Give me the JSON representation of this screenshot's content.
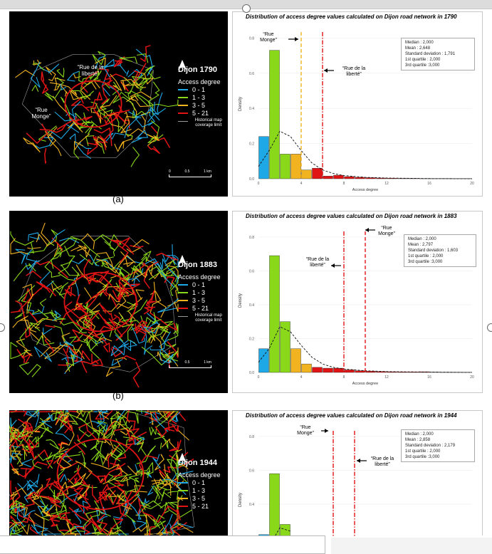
{
  "panels": [
    {
      "id": "a",
      "sublabel": "(a)",
      "city": "Dijon 1790",
      "map_annotations": [
        "“Rue de la liberté”",
        "“Rue Monge”"
      ],
      "scale": [
        "0",
        "0.5",
        "1 km"
      ]
    },
    {
      "id": "b",
      "sublabel": "(b)",
      "city": "Dijon 1883",
      "map_annotations": [],
      "scale": [
        "0",
        "0.5",
        "1 km"
      ]
    },
    {
      "id": "c",
      "sublabel": "",
      "city": "Dijon 1944",
      "map_annotations": [],
      "scale": []
    }
  ],
  "legend": {
    "title": "Access degree",
    "classes": [
      {
        "label": "0 - 1",
        "color": "#1fa8e6"
      },
      {
        "label": "1 - 3",
        "color": "#8ad81a"
      },
      {
        "label": "3 - 5",
        "color": "#f2b320"
      },
      {
        "label": "5 - 21",
        "color": "#e01414"
      }
    ],
    "coverage_label": "Historical map coverage limit",
    "coverage_color": "#9a9a9a"
  },
  "colors": {
    "bin_0_1": "#1fa8e6",
    "bin_1_3": "#8ad81a",
    "bin_3_5": "#f2b320",
    "bin_5_21": "#e01414",
    "map_bg": "#000000"
  },
  "chart_data": [
    {
      "type": "bar",
      "title": "Distribution of access degree values calculated on Dijon road network in 1790",
      "xlabel": "Access degree",
      "ylabel": "Density",
      "xlim": [
        0,
        20
      ],
      "ylim": [
        0,
        0.85
      ],
      "xticks": [
        0,
        4,
        8,
        12,
        16,
        20
      ],
      "yticks": [
        0.0,
        0.2,
        0.4,
        0.6,
        0.8
      ],
      "bins": [
        {
          "x": 1,
          "value": 0.24
        },
        {
          "x": 2,
          "value": 0.73
        },
        {
          "x": 3,
          "value": 0.14
        },
        {
          "x": 4,
          "value": 0.14
        },
        {
          "x": 5,
          "value": 0.05
        },
        {
          "x": 6,
          "value": 0.06
        },
        {
          "x": 7,
          "value": 0.015
        },
        {
          "x": 8,
          "value": 0.02
        },
        {
          "x": 9,
          "value": 0.012
        },
        {
          "x": 10,
          "value": 0.008
        },
        {
          "x": 11,
          "value": 0.006
        },
        {
          "x": 12,
          "value": 0.004
        },
        {
          "x": 13,
          "value": 0.003
        },
        {
          "x": 14,
          "value": 0.002
        },
        {
          "x": 15,
          "value": 0.002
        },
        {
          "x": 16,
          "value": 0.001
        },
        {
          "x": 17,
          "value": 0.001
        },
        {
          "x": 18,
          "value": 0.001
        },
        {
          "x": 19,
          "value": 0.001
        },
        {
          "x": 20,
          "value": 0.001
        }
      ],
      "density_curve": [
        [
          0,
          0.07
        ],
        [
          1,
          0.16
        ],
        [
          2,
          0.27
        ],
        [
          3,
          0.24
        ],
        [
          4,
          0.16
        ],
        [
          5,
          0.09
        ],
        [
          6,
          0.05
        ],
        [
          7,
          0.03
        ],
        [
          8,
          0.018
        ],
        [
          10,
          0.008
        ],
        [
          12,
          0.004
        ],
        [
          16,
          0.001
        ],
        [
          20,
          0.0
        ]
      ],
      "markers": [
        {
          "label": "“Rue Monge”",
          "x": 4,
          "color": "#f2b320",
          "style": "dashed"
        },
        {
          "label": "“Rue de la liberté”",
          "x": 6,
          "color": "#e01414",
          "style": "dashdot"
        }
      ],
      "stats": [
        "Median : 2,000",
        "Mean : 2,648",
        "Standard deviation : 1,791",
        "1st quartile : 2,000",
        "3rd quartile :3,000"
      ]
    },
    {
      "type": "bar",
      "title": "Distribution of access degree values calculated on Dijon road network in 1883",
      "xlabel": "Access degree",
      "ylabel": "Density",
      "xlim": [
        0,
        20
      ],
      "ylim": [
        0,
        0.85
      ],
      "xticks": [
        0,
        4,
        8,
        12,
        16,
        20
      ],
      "yticks": [
        0.0,
        0.2,
        0.4,
        0.6,
        0.8
      ],
      "bins": [
        {
          "x": 1,
          "value": 0.14
        },
        {
          "x": 2,
          "value": 0.69
        },
        {
          "x": 3,
          "value": 0.3
        },
        {
          "x": 4,
          "value": 0.14
        },
        {
          "x": 5,
          "value": 0.05
        },
        {
          "x": 6,
          "value": 0.03
        },
        {
          "x": 7,
          "value": 0.025
        },
        {
          "x": 8,
          "value": 0.025
        },
        {
          "x": 9,
          "value": 0.015
        },
        {
          "x": 10,
          "value": 0.01
        },
        {
          "x": 11,
          "value": 0.007
        },
        {
          "x": 12,
          "value": 0.005
        },
        {
          "x": 13,
          "value": 0.004
        },
        {
          "x": 14,
          "value": 0.003
        },
        {
          "x": 15,
          "value": 0.003
        },
        {
          "x": 16,
          "value": 0.004
        },
        {
          "x": 17,
          "value": 0.002
        },
        {
          "x": 18,
          "value": 0.001
        },
        {
          "x": 19,
          "value": 0.001
        },
        {
          "x": 20,
          "value": 0.001
        }
      ],
      "density_curve": [
        [
          0,
          0.06
        ],
        [
          1,
          0.14
        ],
        [
          2,
          0.27
        ],
        [
          3,
          0.24
        ],
        [
          4,
          0.16
        ],
        [
          5,
          0.09
        ],
        [
          6,
          0.05
        ],
        [
          7,
          0.03
        ],
        [
          8,
          0.02
        ],
        [
          10,
          0.01
        ],
        [
          12,
          0.005
        ],
        [
          16,
          0.002
        ],
        [
          20,
          0.0
        ]
      ],
      "markers": [
        {
          "label": "“Rue de la liberté”",
          "x": 8,
          "color": "#e01414",
          "style": "dashdot"
        },
        {
          "label": "“Rue Monge”",
          "x": 10,
          "color": "#e01414",
          "style": "dashed"
        }
      ],
      "stats": [
        "Median : 2,000",
        "Mean : 2,797",
        "Standard deviation : 1,603",
        "1st quartile : 2,000",
        "3rd quartile :3,000"
      ]
    },
    {
      "type": "bar",
      "title": "Distribution of access degree values calculated on Dijon road network in 1944",
      "xlabel": "",
      "ylabel": "Density",
      "xlim": [
        0,
        20
      ],
      "ylim": [
        0,
        0.85
      ],
      "xticks": [],
      "yticks": [
        0.2,
        0.4,
        0.6,
        0.8
      ],
      "bins": [
        {
          "x": 1,
          "value": 0.22
        },
        {
          "x": 2,
          "value": 0.58
        },
        {
          "x": 3,
          "value": 0.28
        }
      ],
      "density_curve": [
        [
          0,
          0.08
        ],
        [
          1,
          0.15
        ],
        [
          2,
          0.26
        ],
        [
          3,
          0.24
        ]
      ],
      "markers": [
        {
          "label": "“Rue Monge”",
          "x": 7,
          "color": "#e01414",
          "style": "dashdot"
        },
        {
          "label": "“Rue de la liberté”",
          "x": 9,
          "color": "#e01414",
          "style": "dashdot"
        }
      ],
      "stats": [
        "Median : 2,000",
        "Mean : 2,858",
        "Standard deviation : 2,179",
        "1st quartile : 2,000",
        "3rd quartile :3,000"
      ]
    }
  ]
}
